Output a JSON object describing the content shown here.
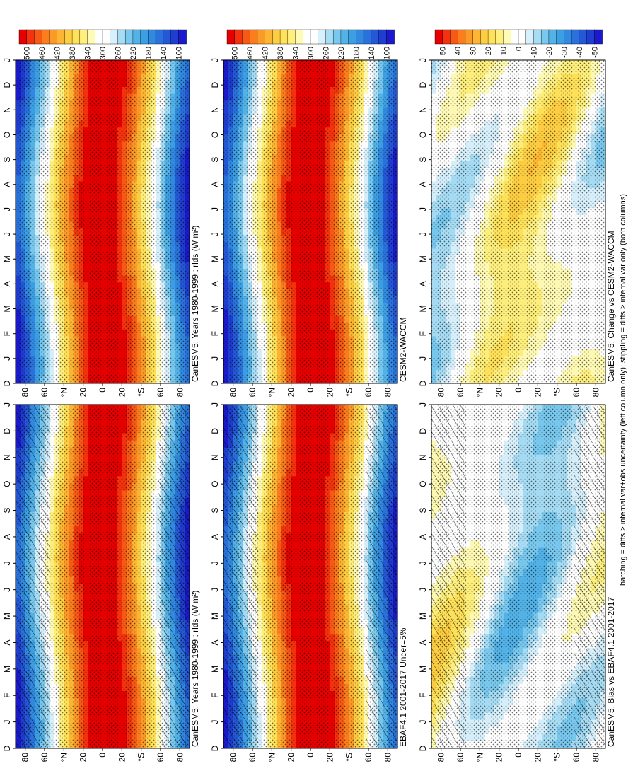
{
  "footnote": "hatching = diffs > internal var+obs uncertainty (left column only); stippling = diffs > internal var only (both columns)",
  "palettes": {
    "abs": [
      "#e60000",
      "#f2330d",
      "#f75a15",
      "#fa7d1e",
      "#fc9a28",
      "#fdb633",
      "#fece42",
      "#ffe25a",
      "#fff07e",
      "#fffab4",
      "#ffffff",
      "#ffffff",
      "#d7f0fb",
      "#a6dcf4",
      "#79c8ee",
      "#53b3e8",
      "#3d9fe3",
      "#318ae0",
      "#2a72db",
      "#2458d6",
      "#1f3dd1",
      "#1a1acc"
    ],
    "diff": [
      "#e60000",
      "#f2330d",
      "#f75a15",
      "#fa7d1e",
      "#fc9a28",
      "#fdb633",
      "#fece42",
      "#ffe25a",
      "#fff07e",
      "#fffab4",
      "#ffffff",
      "#ffffff",
      "#d7f0fb",
      "#a6dcf4",
      "#79c8ee",
      "#53b3e8",
      "#3d9fe3",
      "#318ae0",
      "#2a72db",
      "#2458d6",
      "#1f3dd1",
      "#1a1acc"
    ]
  },
  "colorbar_labels": {
    "abs": [
      "500",
      "460",
      "420",
      "380",
      "340",
      "300",
      "260",
      "220",
      "180",
      "140",
      "100"
    ],
    "diff": [
      "50",
      "40",
      "30",
      "20",
      "10",
      "0",
      "-10",
      "-20",
      "-30",
      "-40",
      "-50"
    ]
  },
  "axis": {
    "months": [
      "D",
      "J",
      "F",
      "M",
      "A",
      "M",
      "J",
      "J",
      "A",
      "S",
      "O",
      "N",
      "D",
      "J"
    ],
    "lat_ticks": [
      {
        "lat": -80,
        "label": "80"
      },
      {
        "lat": -60,
        "label": "60"
      },
      {
        "lat": -40,
        "label": "°S"
      },
      {
        "lat": -20,
        "label": "20"
      },
      {
        "lat": 0,
        "label": "0"
      },
      {
        "lat": 20,
        "label": "20"
      },
      {
        "lat": 40,
        "label": "°N"
      },
      {
        "lat": 60,
        "label": "60"
      },
      {
        "lat": 80,
        "label": "80"
      }
    ]
  },
  "chart_data": [
    {
      "type": "heatmap",
      "title": "CanESM5: Years 1980-1999 : rlds (W m²)",
      "kind": "abs",
      "ylim": [
        -90,
        90
      ],
      "hatching": true,
      "stippling": true
    },
    {
      "type": "heatmap",
      "title": "EBAF4.1 2001-2017 Uncer=5%",
      "kind": "abs",
      "ylim": [
        -90,
        90
      ],
      "hatching": true,
      "stippling": true
    },
    {
      "type": "heatmap",
      "title": "CanESM5: Bias vs EBAF4.1 2001-2017",
      "kind": "diff",
      "ylim": [
        -90,
        90
      ],
      "hatching": true,
      "stippling": true
    },
    {
      "type": "heatmap",
      "title": "CanESM5: Years 1980-1999 : rlds (W m²)",
      "kind": "abs",
      "ylim": [
        -90,
        90
      ],
      "hatching": false,
      "stippling": true
    },
    {
      "type": "heatmap",
      "title": "CESM2-WACCM",
      "kind": "abs",
      "ylim": [
        -90,
        90
      ],
      "hatching": false,
      "stippling": true
    },
    {
      "type": "heatmap",
      "title": "CanESM5: Change vs CESM2-WACCM",
      "kind": "diff",
      "ylim": [
        -90,
        90
      ],
      "hatching": false,
      "stippling": true
    }
  ]
}
